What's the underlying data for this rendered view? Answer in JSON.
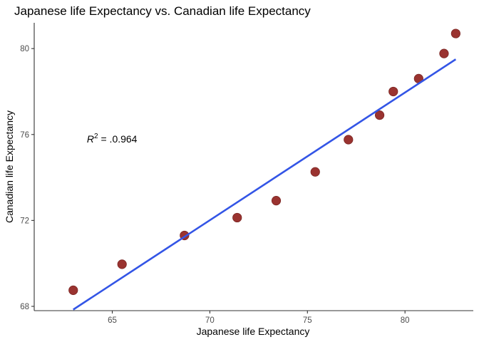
{
  "chart_data": {
    "type": "scatter",
    "title": "Japanese life Expectancy vs. Canadian life Expectancy",
    "xlabel": "Japanese life Expectancy",
    "ylabel": "Canadian life Expectancy",
    "xlim": [
      61.0,
      83.5
    ],
    "ylim": [
      67.8,
      81.2
    ],
    "x_ticks": [
      65,
      70,
      75,
      80
    ],
    "y_ticks": [
      68,
      72,
      76,
      80
    ],
    "grid": false,
    "points": [
      {
        "x": 63.0,
        "y": 68.75
      },
      {
        "x": 65.5,
        "y": 69.96
      },
      {
        "x": 68.7,
        "y": 71.3
      },
      {
        "x": 71.4,
        "y": 72.13
      },
      {
        "x": 73.4,
        "y": 72.92
      },
      {
        "x": 75.4,
        "y": 74.26
      },
      {
        "x": 77.1,
        "y": 75.76
      },
      {
        "x": 78.7,
        "y": 76.9
      },
      {
        "x": 79.4,
        "y": 78.0
      },
      {
        "x": 80.7,
        "y": 78.6
      },
      {
        "x": 82.0,
        "y": 79.77
      },
      {
        "x": 82.6,
        "y": 80.7
      }
    ],
    "fit_line": {
      "x": [
        63.0,
        82.6
      ],
      "y": [
        67.85,
        79.5
      ]
    },
    "annotation": {
      "prefix": "R",
      "superscript": "2",
      "suffix": " = .0.964",
      "x": 63.7,
      "y": 75.8
    },
    "colors": {
      "points": "#9a3330",
      "point_stroke": "#7a2522",
      "fit_line": "#3355e6",
      "axis": "#333333"
    }
  }
}
